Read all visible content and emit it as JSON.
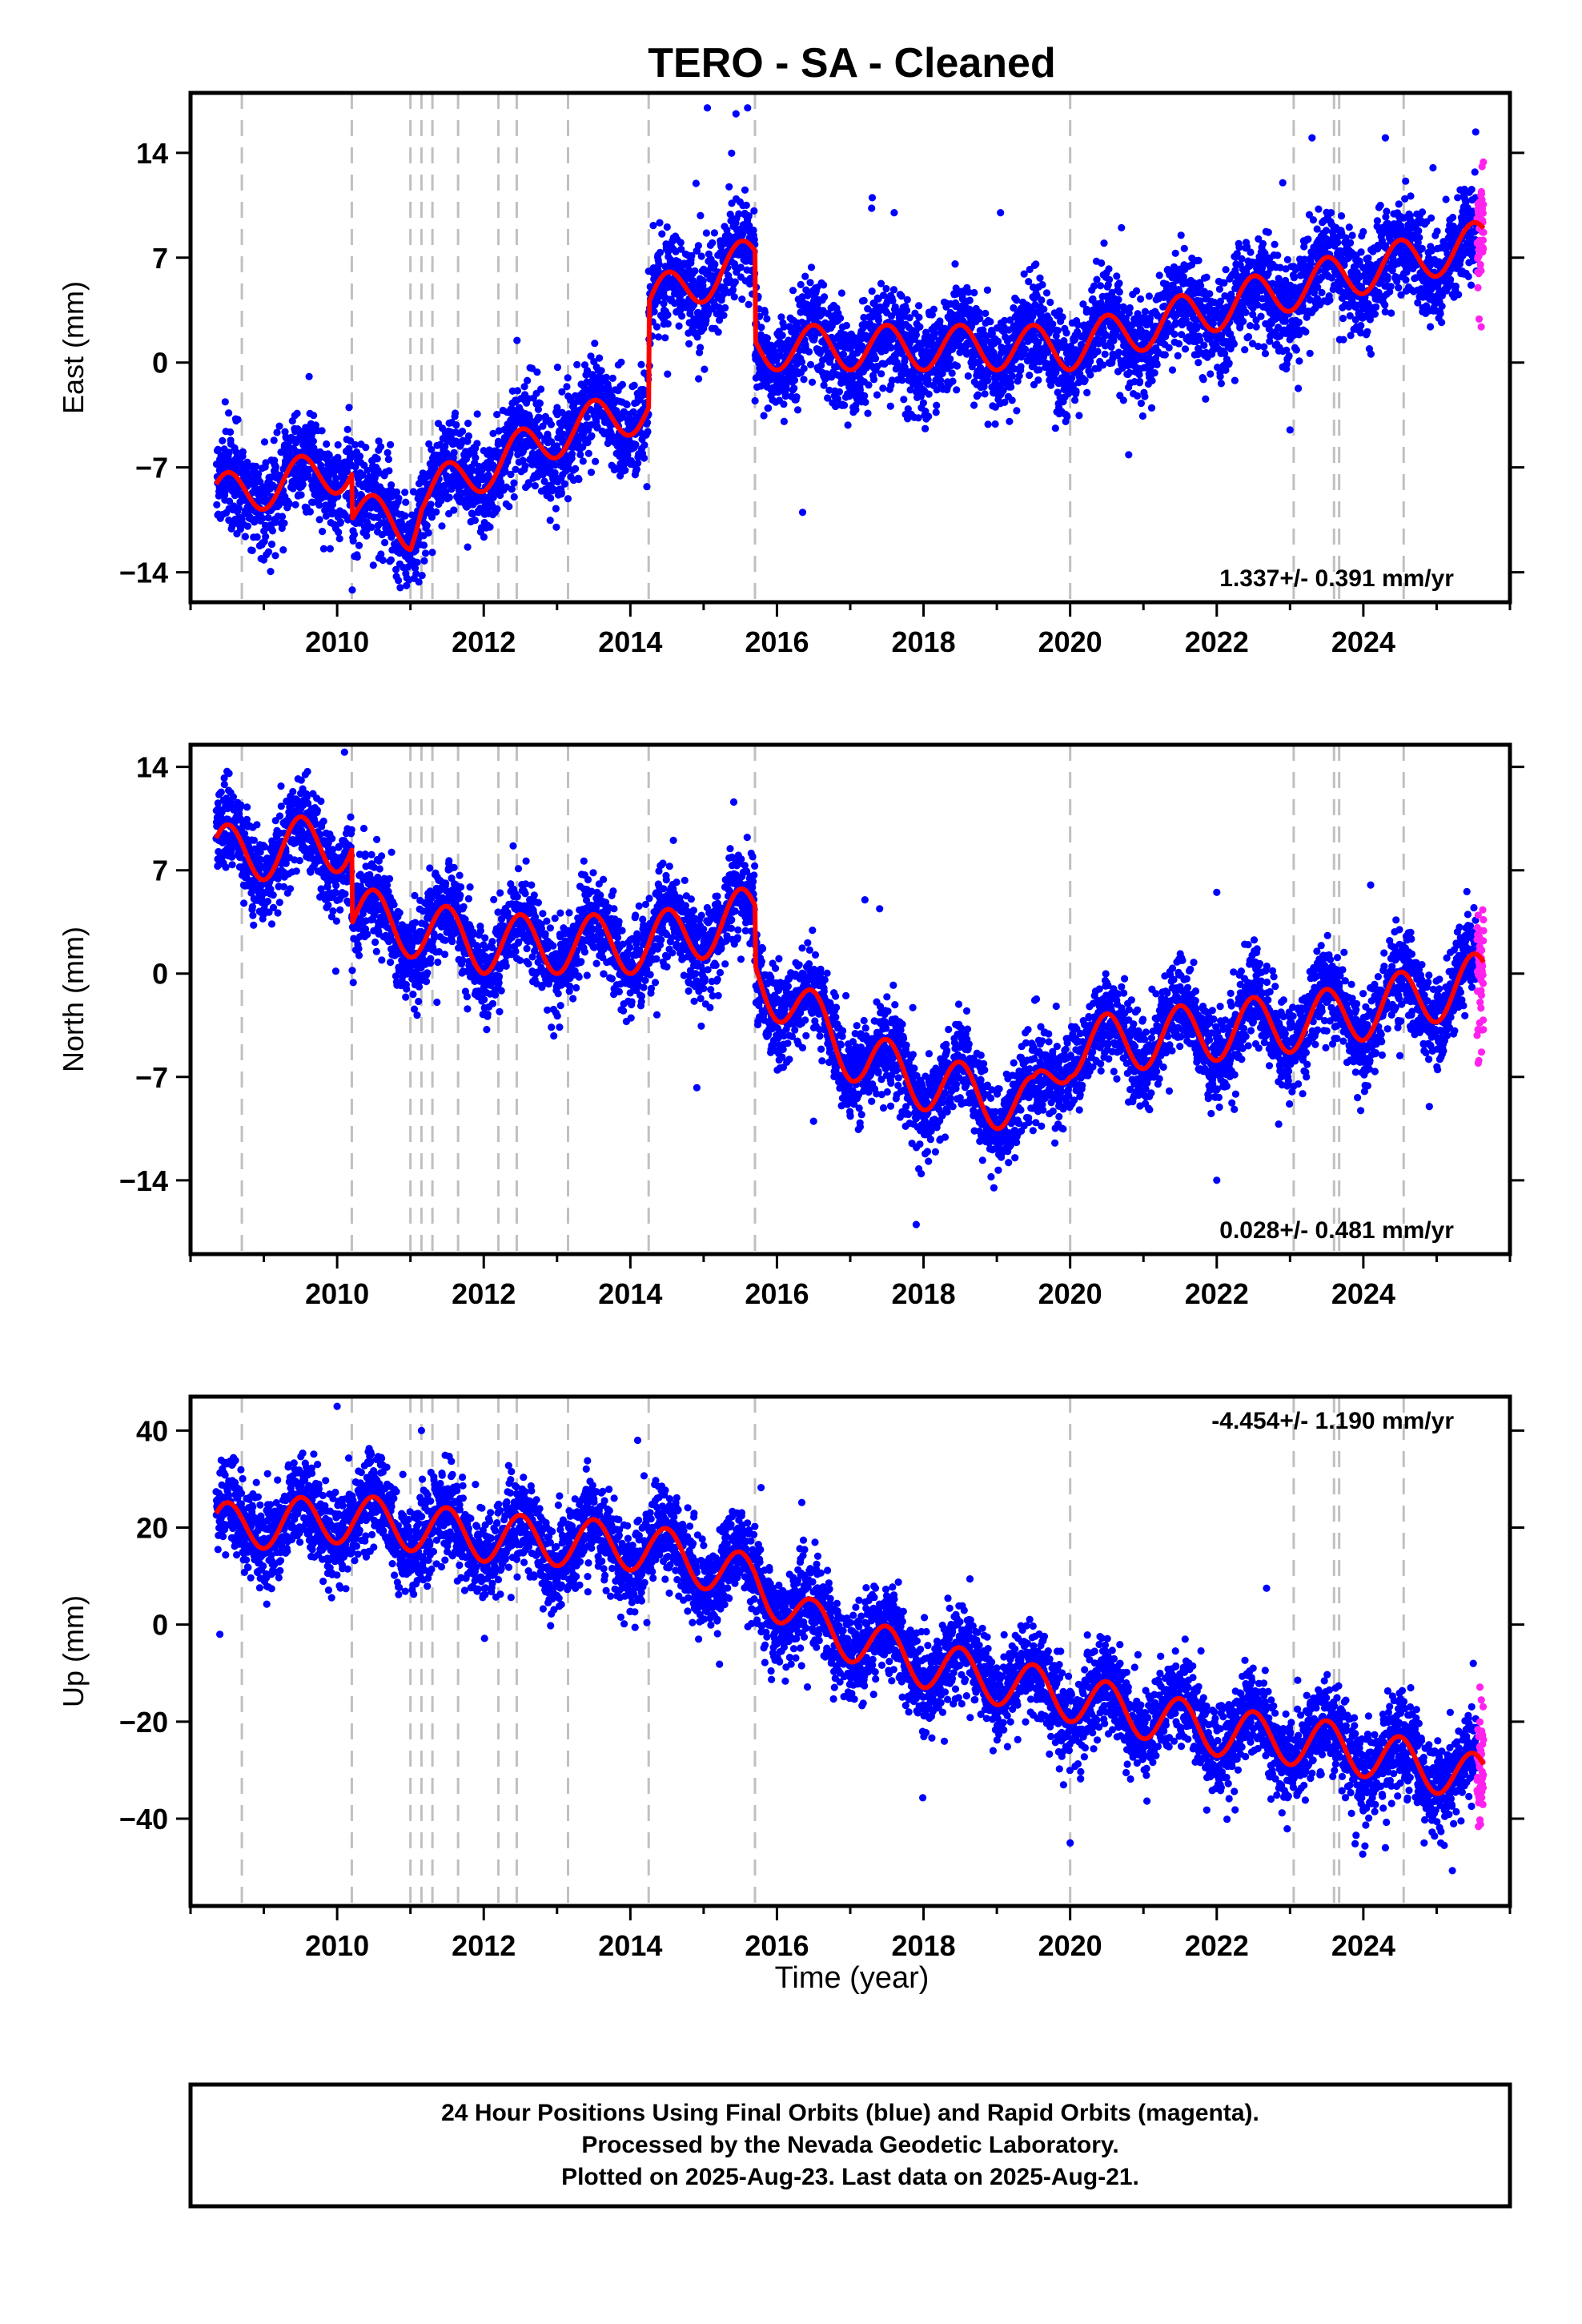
{
  "title": "TERO  - SA - Cleaned",
  "xlabel": "Time (year)",
  "footer": {
    "line1": "24 Hour Positions Using Final Orbits (blue) and Rapid Orbits (magenta).",
    "line2": "Processed by the Nevada Geodetic Laboratory.",
    "line3": "Plotted on 2025-Aug-23. Last data on 2025-Aug-21."
  },
  "colors": {
    "final_orbits": "#0000ff",
    "rapid_orbits": "#ff22ee",
    "model": "#ff0000",
    "event_lines": "#c0c0c0",
    "axes": "#000000"
  },
  "equipment_change_epochs": [
    2008.7,
    2010.2,
    2011.0,
    2011.15,
    2011.3,
    2011.65,
    2012.2,
    2012.45,
    2013.15,
    2014.25,
    2015.7,
    2020.0,
    2023.05,
    2023.6,
    2023.67,
    2024.55
  ],
  "chart_data": [
    {
      "type": "scatter",
      "component": "East",
      "ylabel": "East (mm)",
      "rate_label": "1.337+/- 0.391 mm/yr",
      "rate_position": "bottom-right",
      "xlim": [
        2008.0,
        2026.0
      ],
      "ylim": [
        -16,
        18
      ],
      "xticks": [
        2010,
        2012,
        2014,
        2016,
        2018,
        2020,
        2022,
        2024
      ],
      "xtick_labels": [
        "2010",
        "2012",
        "2014",
        "2016",
        "2018",
        "2020",
        "2022",
        "2024"
      ],
      "yticks": [
        -14,
        -7,
        0,
        7,
        14
      ],
      "ytick_labels": [
        "−14",
        "−7",
        "0",
        "7",
        "14"
      ],
      "data_start": 2008.35,
      "data_end": 2025.64,
      "rapid_start": 2025.55,
      "annual_amplitude": 1.5,
      "noise": 1.6,
      "trend_points": [
        [
          2008.35,
          -9
        ],
        [
          2010.2,
          -7
        ],
        [
          2010.2,
          -10
        ],
        [
          2011.0,
          -11
        ],
        [
          2011.15,
          -9
        ],
        [
          2013.15,
          -4.5
        ],
        [
          2014.25,
          -3
        ],
        [
          2014.25,
          4
        ],
        [
          2015.7,
          7
        ],
        [
          2015.7,
          1
        ],
        [
          2020.0,
          1
        ],
        [
          2023.05,
          5
        ],
        [
          2025.64,
          8
        ]
      ],
      "outliers": [
        [
          2015.05,
          17
        ],
        [
          2015.6,
          17
        ],
        [
          2017.3,
          11
        ],
        [
          2017.6,
          10
        ],
        [
          2019.05,
          10
        ],
        [
          2020.7,
          9
        ],
        [
          2022.9,
          12
        ],
        [
          2023.0,
          -4.5
        ],
        [
          2023.3,
          15
        ],
        [
          2024.3,
          15
        ],
        [
          2016.35,
          -10
        ],
        [
          2024.95,
          13
        ]
      ],
      "grid": false,
      "legend": "none"
    },
    {
      "type": "scatter",
      "component": "North",
      "ylabel": "North (mm)",
      "rate_label": "0.028+/- 0.481 mm/yr",
      "rate_position": "bottom-right",
      "xlim": [
        2008.0,
        2026.0
      ],
      "ylim": [
        -19,
        15.5
      ],
      "xticks": [
        2010,
        2012,
        2014,
        2016,
        2018,
        2020,
        2022,
        2024
      ],
      "xtick_labels": [
        "2010",
        "2012",
        "2014",
        "2016",
        "2018",
        "2020",
        "2022",
        "2024"
      ],
      "yticks": [
        -14,
        -7,
        0,
        7,
        14
      ],
      "ytick_labels": [
        "−14",
        "−7",
        "0",
        "7",
        "14"
      ],
      "data_start": 2008.35,
      "data_end": 2025.64,
      "rapid_start": 2025.55,
      "annual_amplitude": 2.0,
      "noise": 1.5,
      "trend_points": [
        [
          2008.35,
          8
        ],
        [
          2010.2,
          9
        ],
        [
          2010.2,
          4
        ],
        [
          2012.0,
          2
        ],
        [
          2014.25,
          2
        ],
        [
          2015.7,
          4
        ],
        [
          2015.7,
          0
        ],
        [
          2017.2,
          -6
        ],
        [
          2018.5,
          -8
        ],
        [
          2019.5,
          -9
        ],
        [
          2020.0,
          -5
        ],
        [
          2023.6,
          -3
        ],
        [
          2025.64,
          -0.5
        ]
      ],
      "outliers": [
        [
          2010.1,
          15
        ],
        [
          2017.2,
          5
        ],
        [
          2017.9,
          -17
        ],
        [
          2016.5,
          -10
        ],
        [
          2022.0,
          -14
        ],
        [
          2022.0,
          5.5
        ],
        [
          2024.1,
          6
        ],
        [
          2024.9,
          -9
        ]
      ],
      "grid": false,
      "legend": "none"
    },
    {
      "type": "scatter",
      "component": "Up",
      "ylabel": "Up (mm)",
      "rate_label": "-4.454+/- 1.190 mm/yr",
      "rate_position": "top-right",
      "xlim": [
        2008.0,
        2026.0
      ],
      "ylim": [
        -58,
        47
      ],
      "xticks": [
        2010,
        2012,
        2014,
        2016,
        2018,
        2020,
        2022,
        2024
      ],
      "xtick_labels": [
        "2010",
        "2012",
        "2014",
        "2016",
        "2018",
        "2020",
        "2022",
        "2024"
      ],
      "yticks": [
        -40,
        -20,
        0,
        20,
        40
      ],
      "ytick_labels": [
        "−40",
        "−20",
        "0",
        "20",
        "40"
      ],
      "data_start": 2008.35,
      "data_end": 2025.64,
      "rapid_start": 2025.55,
      "annual_amplitude": 5.0,
      "noise": 4.5,
      "trend_points": [
        [
          2008.35,
          20
        ],
        [
          2010.2,
          22
        ],
        [
          2012.0,
          18
        ],
        [
          2014.25,
          16
        ],
        [
          2015.7,
          9
        ],
        [
          2016.5,
          0
        ],
        [
          2018.0,
          -8
        ],
        [
          2020.0,
          -15
        ],
        [
          2022.0,
          -22
        ],
        [
          2023.6,
          -25
        ],
        [
          2025.64,
          -32
        ]
      ],
      "outliers": [
        [
          2010.0,
          45
        ],
        [
          2011.15,
          40
        ],
        [
          2014.1,
          38
        ],
        [
          2020.0,
          -45
        ],
        [
          2024.3,
          -46
        ],
        [
          2025.5,
          -8
        ],
        [
          2008.4,
          -2
        ]
      ],
      "grid": false,
      "legend": "none"
    }
  ]
}
